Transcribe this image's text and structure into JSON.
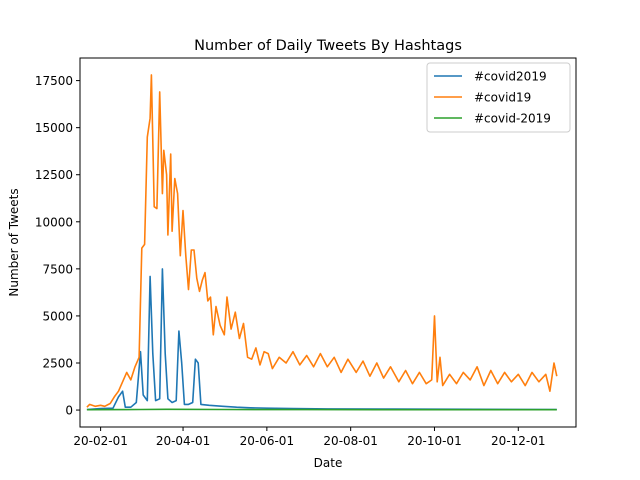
{
  "chart_data": {
    "type": "line",
    "title": "Number of Daily Tweets By Hashtags",
    "xlabel": "Date",
    "ylabel": "Number of Tweets",
    "x_tick_labels": [
      "20-02-01",
      "20-04-01",
      "20-06-01",
      "20-08-01",
      "20-10-01",
      "20-12-01"
    ],
    "x_tick_dates": [
      "2020-02-01",
      "2020-04-01",
      "2020-06-01",
      "2020-08-01",
      "2020-10-01",
      "2020-12-01"
    ],
    "xlim": [
      "2020-01-17",
      "2021-01-12"
    ],
    "y_ticks": [
      0,
      2500,
      5000,
      7500,
      10000,
      12500,
      15000,
      17500
    ],
    "y_tick_labels": [
      "0",
      "2500",
      "5000",
      "7500",
      "10000",
      "12500",
      "15000",
      "17500"
    ],
    "ylim": [
      -900,
      18700
    ],
    "grid": false,
    "legend_position": "top-right",
    "series": [
      {
        "name": "#covid2019",
        "color": "#1f77b4",
        "points": [
          [
            "2020-01-22",
            30
          ],
          [
            "2020-02-01",
            80
          ],
          [
            "2020-02-10",
            100
          ],
          [
            "2020-02-14",
            700
          ],
          [
            "2020-02-17",
            1000
          ],
          [
            "2020-02-19",
            150
          ],
          [
            "2020-02-23",
            150
          ],
          [
            "2020-02-27",
            400
          ],
          [
            "2020-03-01",
            3100
          ],
          [
            "2020-03-03",
            800
          ],
          [
            "2020-03-06",
            500
          ],
          [
            "2020-03-08",
            7100
          ],
          [
            "2020-03-10",
            3000
          ],
          [
            "2020-03-12",
            500
          ],
          [
            "2020-03-15",
            600
          ],
          [
            "2020-03-17",
            7500
          ],
          [
            "2020-03-19",
            3000
          ],
          [
            "2020-03-21",
            600
          ],
          [
            "2020-03-24",
            400
          ],
          [
            "2020-03-27",
            500
          ],
          [
            "2020-03-29",
            4200
          ],
          [
            "2020-03-31",
            2500
          ],
          [
            "2020-04-02",
            300
          ],
          [
            "2020-04-05",
            300
          ],
          [
            "2020-04-08",
            400
          ],
          [
            "2020-04-10",
            2700
          ],
          [
            "2020-04-12",
            2500
          ],
          [
            "2020-04-14",
            300
          ],
          [
            "2020-04-20",
            250
          ],
          [
            "2020-04-30",
            200
          ],
          [
            "2020-05-10",
            150
          ],
          [
            "2020-05-20",
            120
          ],
          [
            "2020-06-01",
            100
          ],
          [
            "2020-06-20",
            80
          ],
          [
            "2020-07-15",
            60
          ],
          [
            "2020-09-01",
            50
          ],
          [
            "2020-11-01",
            40
          ],
          [
            "2020-12-29",
            30
          ]
        ]
      },
      {
        "name": "#covid19",
        "color": "#ff7f0e",
        "points": [
          [
            "2020-01-22",
            150
          ],
          [
            "2020-01-24",
            300
          ],
          [
            "2020-01-28",
            200
          ],
          [
            "2020-02-01",
            250
          ],
          [
            "2020-02-04",
            200
          ],
          [
            "2020-02-08",
            350
          ],
          [
            "2020-02-11",
            700
          ],
          [
            "2020-02-14",
            1000
          ],
          [
            "2020-02-17",
            1500
          ],
          [
            "2020-02-20",
            2000
          ],
          [
            "2020-02-23",
            1600
          ],
          [
            "2020-02-26",
            2300
          ],
          [
            "2020-02-29",
            2800
          ],
          [
            "2020-03-02",
            8600
          ],
          [
            "2020-03-04",
            8800
          ],
          [
            "2020-03-06",
            14500
          ],
          [
            "2020-03-08",
            15500
          ],
          [
            "2020-03-09",
            17800
          ],
          [
            "2020-03-11",
            10800
          ],
          [
            "2020-03-13",
            10700
          ],
          [
            "2020-03-15",
            16900
          ],
          [
            "2020-03-17",
            11500
          ],
          [
            "2020-03-18",
            13800
          ],
          [
            "2020-03-20",
            12500
          ],
          [
            "2020-03-21",
            9300
          ],
          [
            "2020-03-23",
            13600
          ],
          [
            "2020-03-24",
            9500
          ],
          [
            "2020-03-26",
            12300
          ],
          [
            "2020-03-28",
            11500
          ],
          [
            "2020-03-30",
            8200
          ],
          [
            "2020-04-01",
            10600
          ],
          [
            "2020-04-03",
            8200
          ],
          [
            "2020-04-05",
            6400
          ],
          [
            "2020-04-07",
            8500
          ],
          [
            "2020-04-09",
            8500
          ],
          [
            "2020-04-11",
            7000
          ],
          [
            "2020-04-13",
            6300
          ],
          [
            "2020-04-15",
            6900
          ],
          [
            "2020-04-17",
            7300
          ],
          [
            "2020-04-19",
            5800
          ],
          [
            "2020-04-21",
            6000
          ],
          [
            "2020-04-23",
            4000
          ],
          [
            "2020-04-25",
            5500
          ],
          [
            "2020-04-28",
            4500
          ],
          [
            "2020-05-01",
            4000
          ],
          [
            "2020-05-03",
            6000
          ],
          [
            "2020-05-06",
            4300
          ],
          [
            "2020-05-09",
            5200
          ],
          [
            "2020-05-12",
            3800
          ],
          [
            "2020-05-15",
            4600
          ],
          [
            "2020-05-18",
            2800
          ],
          [
            "2020-05-21",
            2700
          ],
          [
            "2020-05-24",
            3300
          ],
          [
            "2020-05-27",
            2400
          ],
          [
            "2020-05-30",
            3100
          ],
          [
            "2020-06-02",
            3000
          ],
          [
            "2020-06-05",
            2200
          ],
          [
            "2020-06-10",
            2800
          ],
          [
            "2020-06-15",
            2500
          ],
          [
            "2020-06-20",
            3100
          ],
          [
            "2020-06-25",
            2400
          ],
          [
            "2020-06-30",
            2900
          ],
          [
            "2020-07-05",
            2300
          ],
          [
            "2020-07-10",
            3000
          ],
          [
            "2020-07-15",
            2300
          ],
          [
            "2020-07-20",
            2800
          ],
          [
            "2020-07-25",
            2000
          ],
          [
            "2020-07-30",
            2700
          ],
          [
            "2020-08-05",
            2000
          ],
          [
            "2020-08-10",
            2600
          ],
          [
            "2020-08-15",
            1800
          ],
          [
            "2020-08-20",
            2500
          ],
          [
            "2020-08-25",
            1700
          ],
          [
            "2020-08-30",
            2300
          ],
          [
            "2020-09-05",
            1500
          ],
          [
            "2020-09-10",
            2100
          ],
          [
            "2020-09-15",
            1400
          ],
          [
            "2020-09-20",
            2000
          ],
          [
            "2020-09-25",
            1400
          ],
          [
            "2020-09-29",
            1600
          ],
          [
            "2020-10-01",
            5000
          ],
          [
            "2020-10-03",
            1500
          ],
          [
            "2020-10-05",
            2800
          ],
          [
            "2020-10-07",
            1300
          ],
          [
            "2020-10-12",
            1900
          ],
          [
            "2020-10-17",
            1400
          ],
          [
            "2020-10-22",
            2000
          ],
          [
            "2020-10-27",
            1600
          ],
          [
            "2020-11-01",
            2300
          ],
          [
            "2020-11-06",
            1300
          ],
          [
            "2020-11-11",
            2100
          ],
          [
            "2020-11-16",
            1400
          ],
          [
            "2020-11-21",
            2000
          ],
          [
            "2020-11-26",
            1500
          ],
          [
            "2020-12-01",
            1900
          ],
          [
            "2020-12-06",
            1300
          ],
          [
            "2020-12-11",
            2000
          ],
          [
            "2020-12-16",
            1500
          ],
          [
            "2020-12-21",
            1900
          ],
          [
            "2020-12-24",
            1000
          ],
          [
            "2020-12-27",
            2500
          ],
          [
            "2020-12-29",
            1800
          ]
        ]
      },
      {
        "name": "#covid-2019",
        "color": "#2ca02c",
        "points": [
          [
            "2020-01-22",
            20
          ],
          [
            "2020-03-01",
            30
          ],
          [
            "2020-03-20",
            40
          ],
          [
            "2020-05-01",
            30
          ],
          [
            "2020-07-01",
            25
          ],
          [
            "2020-09-01",
            20
          ],
          [
            "2020-11-01",
            20
          ],
          [
            "2020-12-29",
            20
          ]
        ]
      }
    ]
  }
}
